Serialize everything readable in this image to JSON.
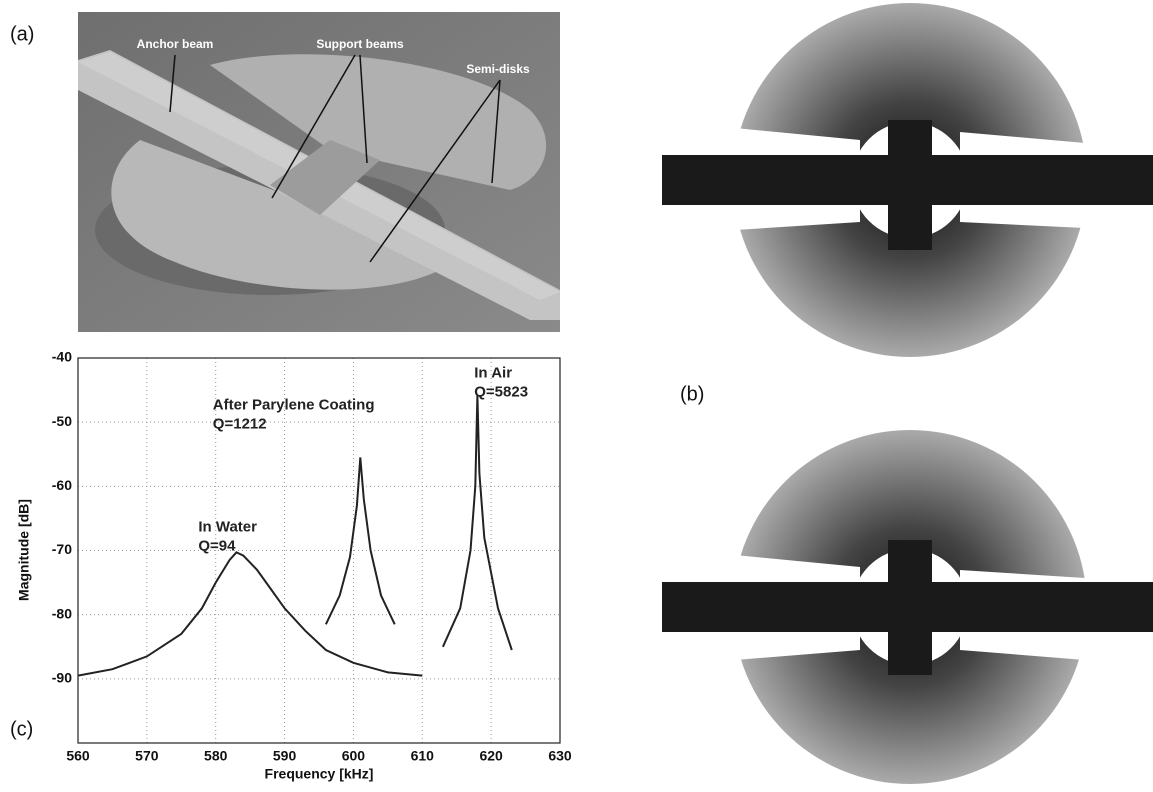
{
  "panels": {
    "a": {
      "label": "(a)",
      "annotations": [
        "Anchor beam",
        "Support beams",
        "Semi-disks"
      ]
    },
    "b": {
      "label": "(b)"
    },
    "c": {
      "label": "(c)"
    }
  },
  "chart_data": {
    "type": "line",
    "x_label": "Frequency [kHz]",
    "y_label": "Magnitude [dB]",
    "xlim": [
      560,
      630
    ],
    "xticks": [
      560,
      570,
      580,
      590,
      600,
      610,
      620,
      630
    ],
    "ylim": [
      -100,
      -40
    ],
    "yticks": [
      -90,
      -80,
      -70,
      -60,
      -50,
      -40
    ],
    "grid": true,
    "annotations": [
      {
        "lines": [
          "In Water",
          "Q=94"
        ],
        "x": 583,
        "y": -72
      },
      {
        "lines": [
          "After Parylene Coating",
          "Q=1212"
        ],
        "x": 588,
        "y": -53
      },
      {
        "lines": [
          "In Air",
          "Q=5823"
        ],
        "x": 619,
        "y": -48
      }
    ],
    "series": [
      {
        "color": "#222222",
        "x": [
          560,
          565,
          570,
          575,
          578,
          580,
          582,
          583,
          584,
          586,
          588,
          590,
          593,
          596,
          600,
          605,
          610
        ],
        "values": [
          -89.5,
          -88.5,
          -86.5,
          -83,
          -79,
          -75,
          -71.5,
          -70.3,
          -70.8,
          -73,
          -76,
          -79,
          -82.5,
          -85.5,
          -87.5,
          -89,
          -89.5
        ]
      },
      {
        "color": "#222222",
        "x": [
          596,
          598,
          599.5,
          600.5,
          601,
          601.5,
          602.5,
          604,
          606
        ],
        "values": [
          -81.5,
          -77,
          -71,
          -63,
          -55.5,
          -62,
          -70,
          -77,
          -81.5
        ]
      },
      {
        "color": "#222222",
        "x": [
          613,
          615.5,
          617,
          617.7,
          618,
          618.3,
          619,
          621,
          623
        ],
        "values": [
          -85,
          -79,
          -70,
          -60,
          -45.8,
          -58,
          -68,
          -79,
          -85.5
        ]
      }
    ]
  }
}
